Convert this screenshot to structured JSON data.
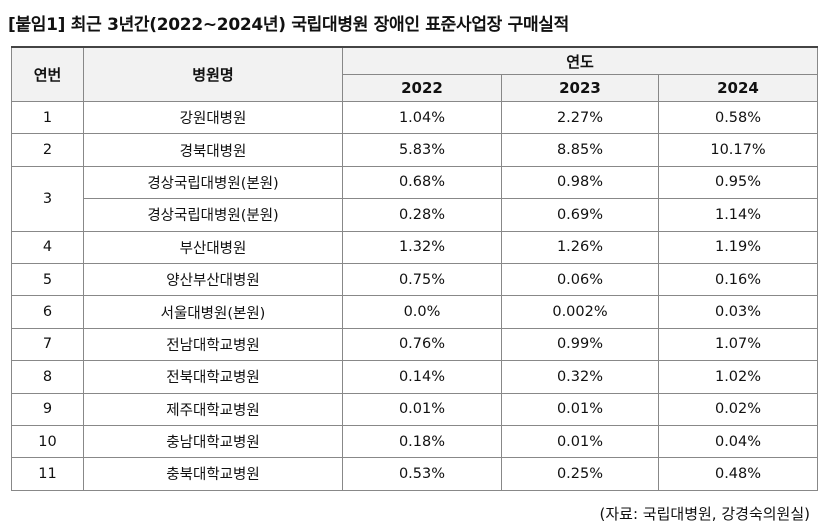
{
  "title": "[붙임1] 최근 3년간(2022~2024년) 국립대병원 장애인 표준사업장 구매실적",
  "table": {
    "headers": {
      "no": "연번",
      "name": "병원명",
      "year_group": "연도",
      "years": [
        "2022",
        "2023",
        "2024"
      ]
    },
    "rows": [
      {
        "no": "1",
        "name": "강원대병원",
        "values": [
          "1.04%",
          "2.27%",
          "0.58%"
        ]
      },
      {
        "no": "2",
        "name": "경북대병원",
        "values": [
          "5.83%",
          "8.85%",
          "10.17%"
        ]
      },
      {
        "no": "3",
        "name": "경상국립대병원(본원)",
        "values": [
          "0.68%",
          "0.98%",
          "0.95%"
        ]
      },
      {
        "no": "",
        "name": "경상국립대병원(분원)",
        "values": [
          "0.28%",
          "0.69%",
          "1.14%"
        ]
      },
      {
        "no": "4",
        "name": "부산대병원",
        "values": [
          "1.32%",
          "1.26%",
          "1.19%"
        ]
      },
      {
        "no": "5",
        "name": "양산부산대병원",
        "values": [
          "0.75%",
          "0.06%",
          "0.16%"
        ]
      },
      {
        "no": "6",
        "name": "서울대병원(본원)",
        "values": [
          "0.0%",
          "0.002%",
          "0.03%"
        ]
      },
      {
        "no": "7",
        "name": "전남대학교병원",
        "values": [
          "0.76%",
          "0.99%",
          "1.07%"
        ]
      },
      {
        "no": "8",
        "name": "전북대학교병원",
        "values": [
          "0.14%",
          "0.32%",
          "1.02%"
        ]
      },
      {
        "no": "9",
        "name": "제주대학교병원",
        "values": [
          "0.01%",
          "0.01%",
          "0.02%"
        ]
      },
      {
        "no": "10",
        "name": "충남대학교병원",
        "values": [
          "0.18%",
          "0.01%",
          "0.04%"
        ]
      },
      {
        "no": "11",
        "name": "충북대학교병원",
        "values": [
          "0.53%",
          "0.25%",
          "0.48%"
        ]
      }
    ]
  },
  "source": "(자료: 국립대병원, 강경숙의원실)"
}
